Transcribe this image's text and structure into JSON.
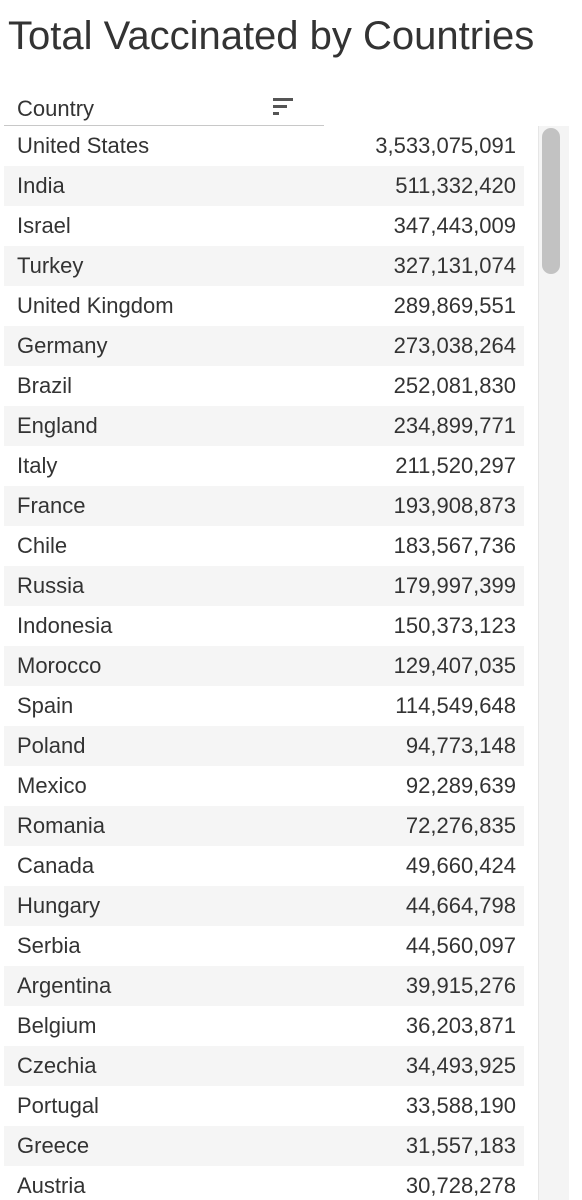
{
  "chart_data": {
    "type": "table",
    "title": "Total Vaccinated by Countries",
    "columns": [
      "Country",
      ""
    ],
    "rows": [
      {
        "country": "United States",
        "value": "3,533,075,091"
      },
      {
        "country": "India",
        "value": "511,332,420"
      },
      {
        "country": "Israel",
        "value": "347,443,009"
      },
      {
        "country": "Turkey",
        "value": "327,131,074"
      },
      {
        "country": "United Kingdom",
        "value": "289,869,551"
      },
      {
        "country": "Germany",
        "value": "273,038,264"
      },
      {
        "country": "Brazil",
        "value": "252,081,830"
      },
      {
        "country": "England",
        "value": "234,899,771"
      },
      {
        "country": "Italy",
        "value": "211,520,297"
      },
      {
        "country": "France",
        "value": "193,908,873"
      },
      {
        "country": "Chile",
        "value": "183,567,736"
      },
      {
        "country": "Russia",
        "value": "179,997,399"
      },
      {
        "country": "Indonesia",
        "value": "150,373,123"
      },
      {
        "country": "Morocco",
        "value": "129,407,035"
      },
      {
        "country": "Spain",
        "value": "114,549,648"
      },
      {
        "country": "Poland",
        "value": "94,773,148"
      },
      {
        "country": "Mexico",
        "value": "92,289,639"
      },
      {
        "country": "Romania",
        "value": "72,276,835"
      },
      {
        "country": "Canada",
        "value": "49,660,424"
      },
      {
        "country": "Hungary",
        "value": "44,664,798"
      },
      {
        "country": "Serbia",
        "value": "44,560,097"
      },
      {
        "country": "Argentina",
        "value": "39,915,276"
      },
      {
        "country": "Belgium",
        "value": "36,203,871"
      },
      {
        "country": "Czechia",
        "value": "34,493,925"
      },
      {
        "country": "Portugal",
        "value": "33,588,190"
      },
      {
        "country": "Greece",
        "value": "31,557,183"
      },
      {
        "country": "Austria",
        "value": "30,728,278"
      }
    ]
  },
  "icons": {
    "sort": "sort-descending-icon"
  },
  "colors": {
    "text": "#333333",
    "row_alt": "#f5f5f5",
    "header_rule": "#c8c8c8",
    "scrollbar_thumb": "#c2c2c2"
  }
}
